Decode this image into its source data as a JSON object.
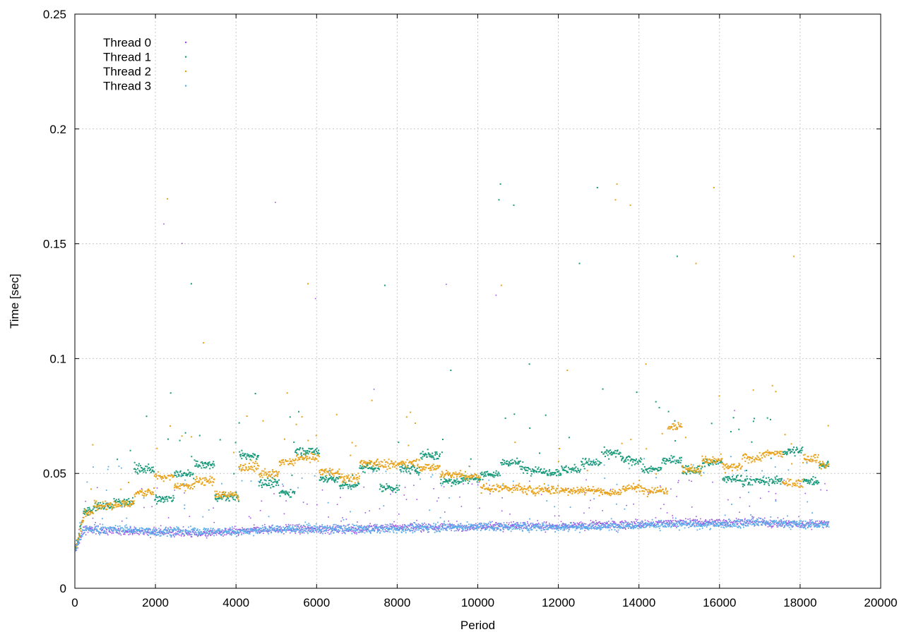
{
  "chart_data": {
    "type": "scatter",
    "title": "",
    "xlabel": "Period",
    "ylabel": "Time [sec]",
    "xlim": [
      0,
      20000
    ],
    "ylim": [
      0,
      0.25
    ],
    "xticks": [
      0,
      2000,
      4000,
      6000,
      8000,
      10000,
      12000,
      14000,
      16000,
      18000,
      20000
    ],
    "xtick_labels": [
      "0",
      "2000",
      "4000",
      "6000",
      "8000",
      "10000",
      "12000",
      "14000",
      "16000",
      "18000",
      "20000"
    ],
    "yticks": [
      0,
      0.05,
      0.1,
      0.15,
      0.2,
      0.25
    ],
    "ytick_labels": [
      "0",
      "0.05",
      "0.1",
      "0.15",
      "0.2",
      "0.25"
    ],
    "grid": true,
    "legend_position": "top-left",
    "x_max_data": 18700,
    "series": [
      {
        "name": "Thread 0",
        "color": "#9a55e0",
        "x": [
          200,
          1000,
          2000,
          3000,
          4000,
          5000,
          6000,
          7000,
          8000,
          9000,
          10000,
          11000,
          12000,
          13000,
          14000,
          15000,
          16000,
          17000,
          18000,
          18700
        ],
        "values": [
          0.026,
          0.025,
          0.025,
          0.024,
          0.025,
          0.026,
          0.026,
          0.026,
          0.027,
          0.027,
          0.027,
          0.028,
          0.027,
          0.028,
          0.028,
          0.029,
          0.029,
          0.029,
          0.028,
          0.029
        ]
      },
      {
        "name": "Thread 1",
        "color": "#1a9a7a",
        "x": [
          200,
          700,
          1200,
          1700,
          2200,
          2700,
          3200,
          3700,
          4300,
          4800,
          5300,
          5700,
          6300,
          6800,
          7300,
          7800,
          8300,
          8800,
          9300,
          9800,
          10300,
          10800,
          11300,
          11800,
          12300,
          12800,
          13300,
          13800,
          14300,
          14800,
          15300,
          15800,
          16300,
          16800,
          17300,
          17800,
          18300,
          18700
        ],
        "values": [
          0.034,
          0.036,
          0.038,
          0.052,
          0.039,
          0.05,
          0.054,
          0.04,
          0.058,
          0.046,
          0.042,
          0.06,
          0.048,
          0.045,
          0.053,
          0.044,
          0.052,
          0.058,
          0.047,
          0.048,
          0.05,
          0.055,
          0.052,
          0.051,
          0.052,
          0.055,
          0.059,
          0.056,
          0.052,
          0.056,
          0.052,
          0.055,
          0.048,
          0.047,
          0.047,
          0.06,
          0.047,
          0.054
        ]
      },
      {
        "name": "Thread 2",
        "color": "#e8a31c",
        "x": [
          200,
          700,
          1200,
          1700,
          2200,
          2700,
          3200,
          3700,
          4300,
          4800,
          5300,
          5700,
          6300,
          6800,
          7300,
          7800,
          8300,
          8800,
          9300,
          9800,
          10300,
          10800,
          11300,
          11800,
          12300,
          12800,
          13300,
          13800,
          14300,
          14800,
          14950,
          15300,
          15800,
          16300,
          16800,
          17300,
          17800,
          18300,
          18700
        ],
        "values": [
          0.033,
          0.036,
          0.037,
          0.042,
          0.049,
          0.045,
          0.047,
          0.041,
          0.053,
          0.05,
          0.055,
          0.057,
          0.051,
          0.048,
          0.055,
          0.054,
          0.055,
          0.053,
          0.05,
          0.049,
          0.044,
          0.044,
          0.043,
          0.043,
          0.043,
          0.043,
          0.042,
          0.044,
          0.043,
          0.043,
          0.071,
          0.052,
          0.056,
          0.053,
          0.057,
          0.059,
          0.046,
          0.057,
          0.054
        ]
      },
      {
        "name": "Thread 3",
        "color": "#5aacea",
        "x": [
          200,
          1000,
          2000,
          3000,
          4000,
          5000,
          6000,
          7000,
          8000,
          9000,
          10000,
          11000,
          12000,
          13000,
          14000,
          15000,
          16000,
          17000,
          18000,
          18700
        ],
        "values": [
          0.026,
          0.026,
          0.025,
          0.025,
          0.025,
          0.026,
          0.026,
          0.026,
          0.026,
          0.027,
          0.027,
          0.027,
          0.027,
          0.027,
          0.028,
          0.028,
          0.028,
          0.029,
          0.028,
          0.028
        ]
      }
    ]
  }
}
